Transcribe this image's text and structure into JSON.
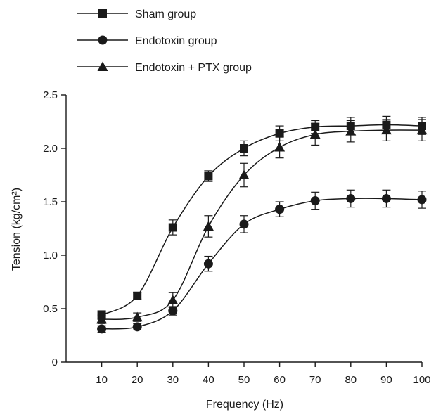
{
  "chart_data": {
    "type": "line",
    "title": "",
    "xlabel": "Frequency (Hz)",
    "ylabel": "Tension (kg/cm²)",
    "x": [
      10,
      20,
      30,
      40,
      50,
      60,
      70,
      80,
      90,
      100
    ],
    "xlim": [
      0,
      100
    ],
    "ylim": [
      0,
      2.5
    ],
    "xticks": [
      "10",
      "20",
      "30",
      "40",
      "50",
      "60",
      "70",
      "80",
      "90",
      "100"
    ],
    "yticks": [
      "0",
      "0.5",
      "1.0",
      "1.5",
      "2.0",
      "2.5"
    ],
    "grid": false,
    "legend_position": "top-left",
    "series": [
      {
        "name": "Sham group",
        "marker": "square",
        "values": [
          0.44,
          0.62,
          1.26,
          1.74,
          2.0,
          2.14,
          2.2,
          2.21,
          2.22,
          2.21
        ],
        "errors": [
          0.04,
          0.03,
          0.07,
          0.05,
          0.07,
          0.07,
          0.06,
          0.08,
          0.08,
          0.08
        ]
      },
      {
        "name": "Endotoxin group",
        "marker": "circle",
        "values": [
          0.31,
          0.33,
          0.48,
          0.92,
          1.29,
          1.43,
          1.51,
          1.53,
          1.53,
          1.52
        ],
        "errors": [
          0.03,
          0.03,
          0.04,
          0.07,
          0.08,
          0.07,
          0.08,
          0.08,
          0.08,
          0.08
        ]
      },
      {
        "name": "Endotoxin + PTX group",
        "marker": "triangle",
        "values": [
          0.4,
          0.42,
          0.58,
          1.27,
          1.75,
          2.01,
          2.13,
          2.16,
          2.17,
          2.17
        ],
        "errors": [
          0.04,
          0.04,
          0.07,
          0.1,
          0.11,
          0.1,
          0.1,
          0.1,
          0.1,
          0.1
        ]
      }
    ]
  }
}
